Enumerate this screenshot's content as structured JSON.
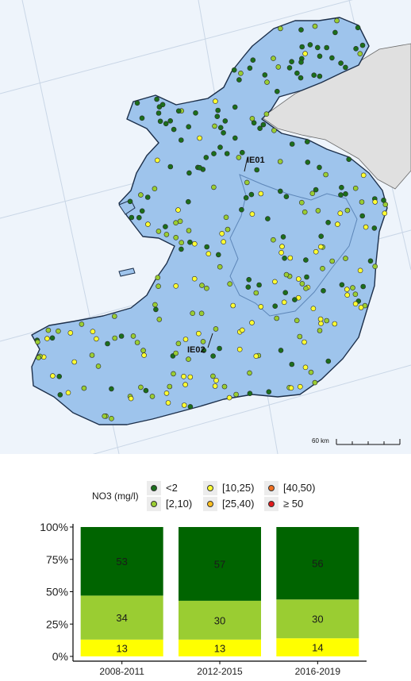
{
  "map": {
    "region_labels": [
      "IE01",
      "IE02"
    ],
    "scale_label": "60 km",
    "colors": {
      "sea": "#eef4fb",
      "land": "#9ec4ec",
      "neighbour": "#e0e0e0",
      "border": "#1c2f4a",
      "rbd_line": "#5d86b8"
    }
  },
  "legend": {
    "title": "NO3 (mg/l)",
    "classes": [
      {
        "label": "<2",
        "color": "#1b6e1b"
      },
      {
        "label": "[2,10)",
        "color": "#9acd32"
      },
      {
        "label": "[10,25)",
        "color": "#ffff33"
      },
      {
        "label": "[25,40)",
        "color": "#ffbf1f"
      },
      {
        "label": "[40,50)",
        "color": "#f07020"
      },
      {
        "label": "≥ 50",
        "color": "#e31a1c"
      }
    ]
  },
  "chart_data": {
    "type": "bar",
    "stacked": true,
    "percent": true,
    "categories": [
      "2008-2011",
      "2012-2015",
      "2016-2019"
    ],
    "series": [
      {
        "name": "[10,25)",
        "color": "#ffff00",
        "values": [
          13,
          13,
          14
        ]
      },
      {
        "name": "[2,10)",
        "color": "#9acd32",
        "values": [
          34,
          30,
          30
        ]
      },
      {
        "name": "<2",
        "color": "#006400",
        "values": [
          53,
          57,
          56
        ]
      }
    ],
    "ylim": [
      0,
      100
    ],
    "yticks": [
      "0%",
      "25%",
      "50%",
      "75%",
      "100%"
    ],
    "grid": false
  }
}
